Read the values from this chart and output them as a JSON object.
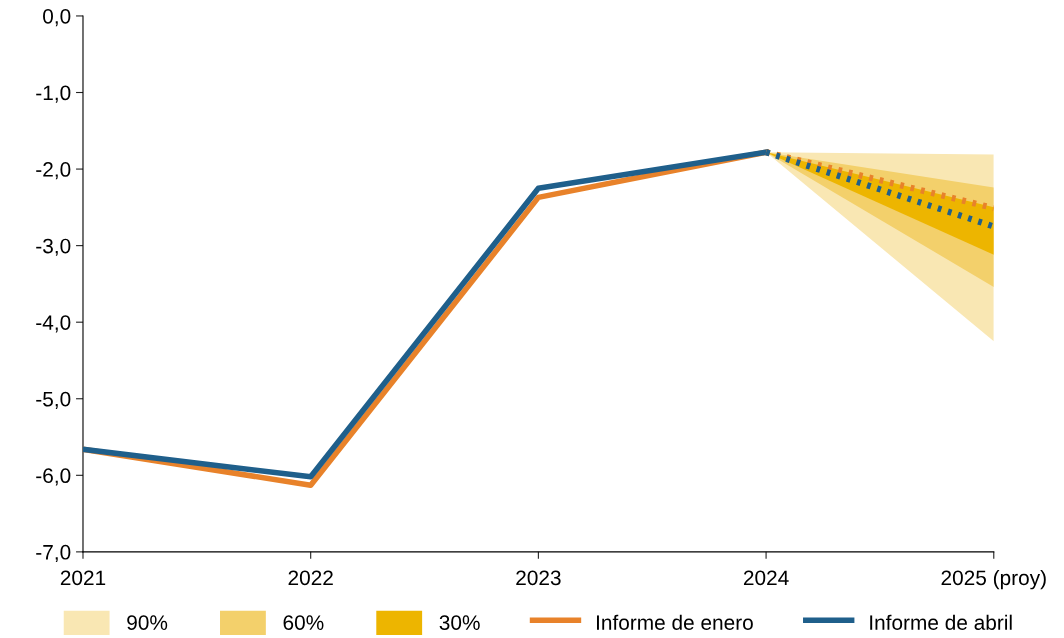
{
  "chart_data": {
    "type": "line",
    "categories": [
      "2021",
      "2022",
      "2023",
      "2024",
      "2025 (proy)"
    ],
    "ylim": [
      -7,
      0
    ],
    "yticks": [
      {
        "value": 0,
        "label": "0,0"
      },
      {
        "value": -1,
        "label": "-1,0"
      },
      {
        "value": -2,
        "label": "-2,0"
      },
      {
        "value": -3,
        "label": "-3,0"
      },
      {
        "value": -4,
        "label": "-4,0"
      },
      {
        "value": -5,
        "label": "-5,0"
      },
      {
        "value": -6,
        "label": "-6,0"
      },
      {
        "value": -7,
        "label": "-7,0"
      }
    ],
    "grid": false,
    "legend": "bottom",
    "series": [
      {
        "name": "90%",
        "type": "area",
        "color": "#f9e7b3",
        "values": [
          null,
          null,
          null,
          null,
          null
        ],
        "lower": [
          null,
          null,
          null,
          -1.78,
          -4.25
        ],
        "upper": [
          null,
          null,
          null,
          -1.78,
          -1.81
        ]
      },
      {
        "name": "60%",
        "type": "area",
        "color": "#f3d06b",
        "values": [
          null,
          null,
          null,
          null,
          null
        ],
        "lower": [
          null,
          null,
          null,
          -1.78,
          -3.54
        ],
        "upper": [
          null,
          null,
          null,
          -1.78,
          -2.24
        ]
      },
      {
        "name": "30%",
        "type": "area",
        "color": "#edb500",
        "values": [
          null,
          null,
          null,
          null,
          null
        ],
        "lower": [
          null,
          null,
          null,
          -1.78,
          -3.12
        ],
        "upper": [
          null,
          null,
          null,
          -1.78,
          -2.5
        ]
      },
      {
        "name": "Informe de enero",
        "type": "line",
        "color": "#e8822a",
        "line_style": "solid",
        "values": [
          -5.66,
          -6.13,
          -2.37,
          -1.78,
          null
        ]
      },
      {
        "name": "Informe de abril",
        "type": "line",
        "color": "#1f5f8b",
        "line_style": "solid",
        "values": [
          -5.66,
          -6.02,
          -2.25,
          -1.78,
          null
        ]
      },
      {
        "type": "line",
        "color": "#e8822a",
        "line_style": "dotted",
        "values": [
          null,
          null,
          null,
          -1.78,
          -2.51
        ]
      },
      {
        "type": "line",
        "color": "#1f5f8b",
        "line_style": "dotted",
        "values": [
          null,
          null,
          null,
          -1.78,
          -2.75
        ]
      }
    ]
  }
}
